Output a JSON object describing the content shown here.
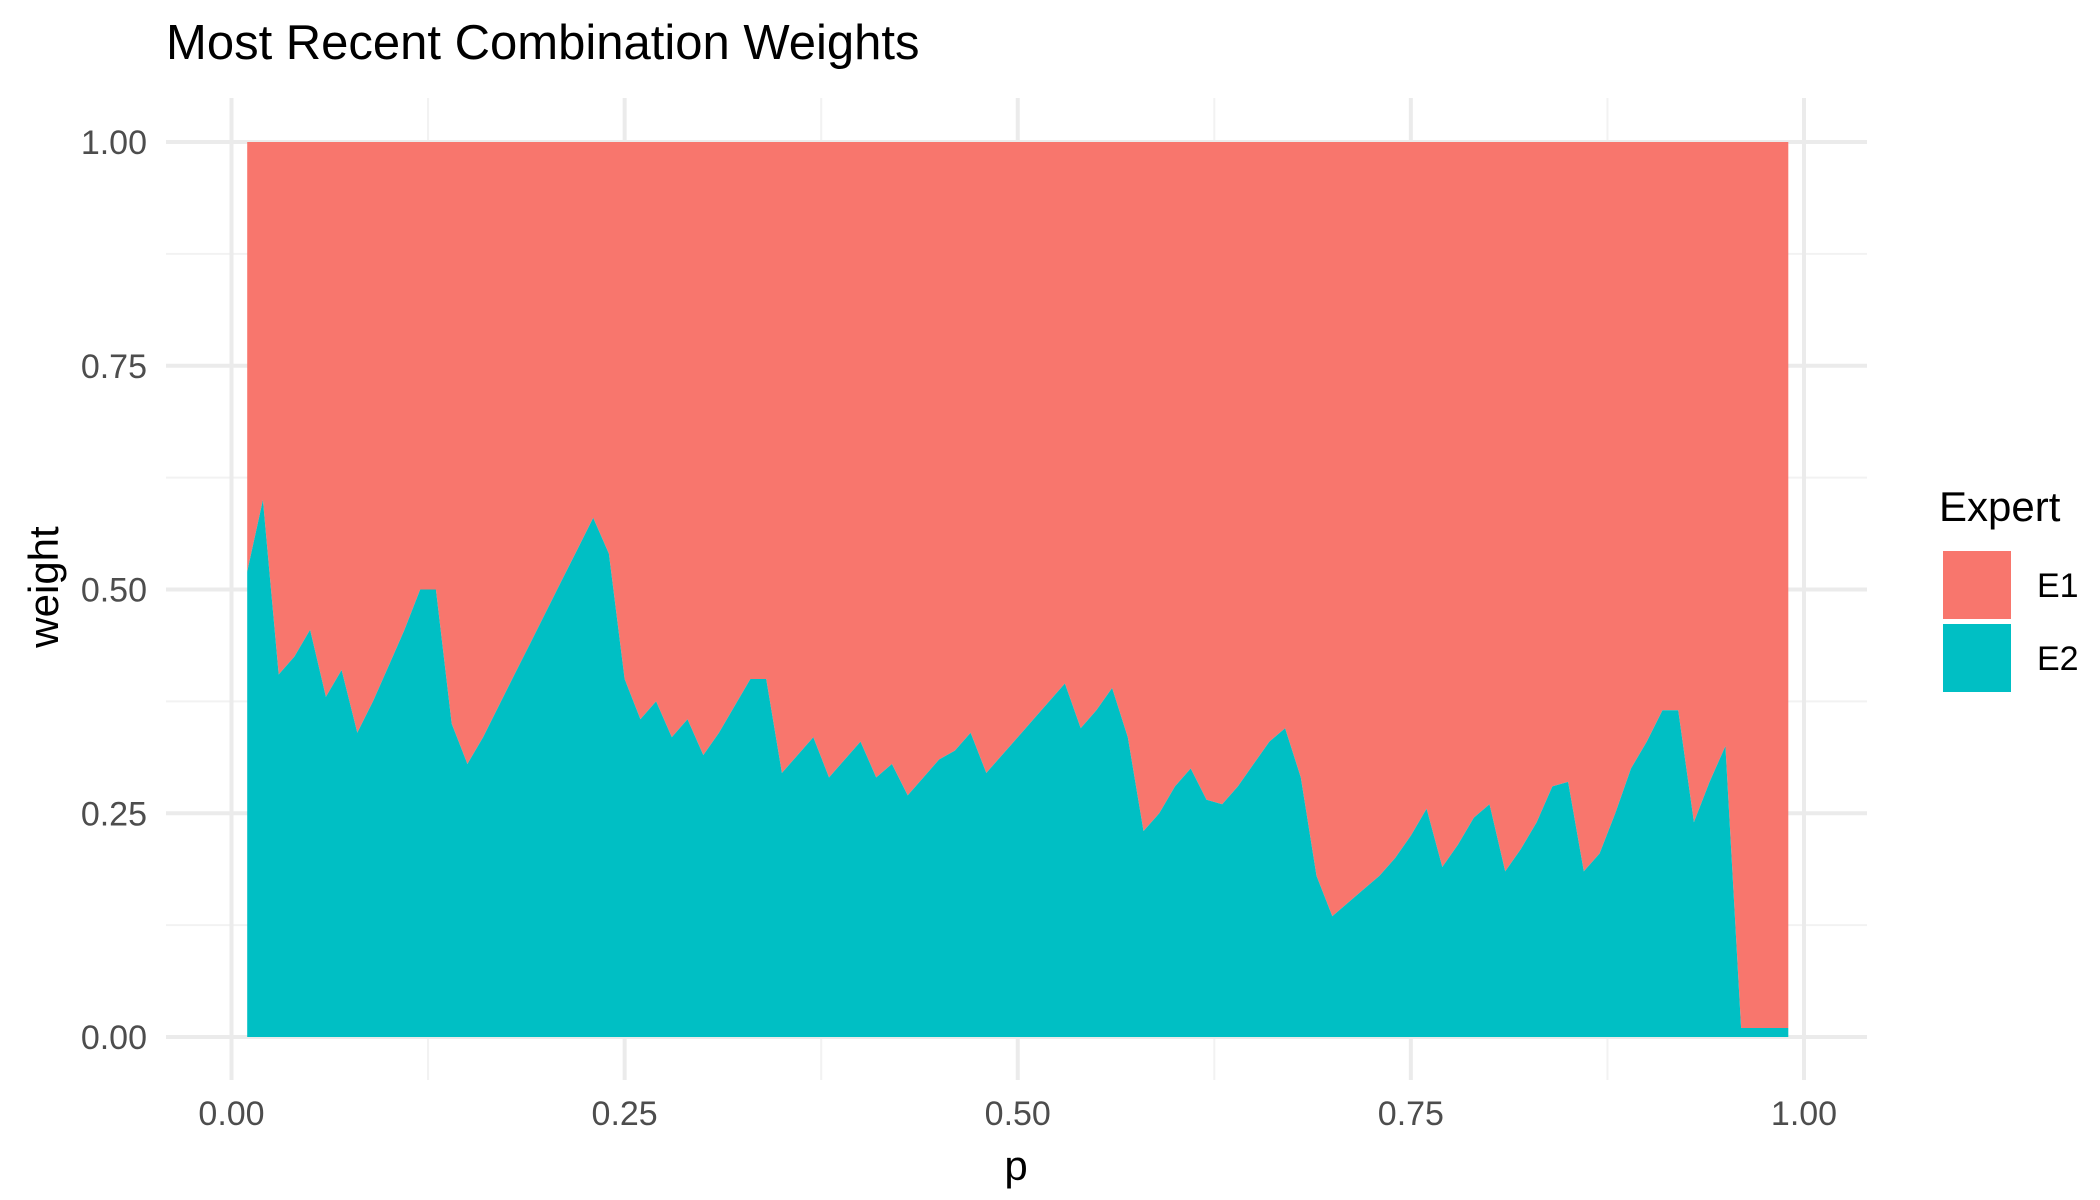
{
  "chart_data": {
    "type": "area",
    "stacked": true,
    "title": "Most Recent Combination Weights",
    "xlabel": "p",
    "ylabel": "weight",
    "xlim": [
      0,
      1
    ],
    "ylim": [
      0,
      1
    ],
    "x_ticks": [
      {
        "value": 0,
        "label": "0.00"
      },
      {
        "value": 0.25,
        "label": "0.25"
      },
      {
        "value": 0.5,
        "label": "0.50"
      },
      {
        "value": 0.75,
        "label": "0.75"
      },
      {
        "value": 1,
        "label": "1.00"
      }
    ],
    "y_ticks": [
      {
        "value": 0,
        "label": "0.00"
      },
      {
        "value": 0.25,
        "label": "0.25"
      },
      {
        "value": 0.5,
        "label": "0.50"
      },
      {
        "value": 0.75,
        "label": "0.75"
      },
      {
        "value": 1,
        "label": "1.00"
      }
    ],
    "grid": true,
    "legend": {
      "title": "Expert",
      "placement": "right"
    },
    "x": [
      0.01,
      0.02,
      0.03,
      0.04,
      0.05,
      0.06,
      0.07,
      0.08,
      0.09,
      0.1,
      0.11,
      0.12,
      0.13,
      0.14,
      0.15,
      0.16,
      0.17,
      0.18,
      0.19,
      0.2,
      0.21,
      0.22,
      0.23,
      0.24,
      0.25,
      0.26,
      0.27,
      0.28,
      0.29,
      0.3,
      0.31,
      0.32,
      0.33,
      0.34,
      0.35,
      0.36,
      0.37,
      0.38,
      0.39,
      0.4,
      0.41,
      0.42,
      0.43,
      0.44,
      0.45,
      0.46,
      0.47,
      0.48,
      0.49,
      0.5,
      0.51,
      0.52,
      0.53,
      0.54,
      0.55,
      0.56,
      0.57,
      0.58,
      0.59,
      0.6,
      0.61,
      0.62,
      0.63,
      0.64,
      0.65,
      0.66,
      0.67,
      0.68,
      0.69,
      0.7,
      0.71,
      0.72,
      0.73,
      0.74,
      0.75,
      0.76,
      0.77,
      0.78,
      0.79,
      0.8,
      0.81,
      0.82,
      0.83,
      0.84,
      0.85,
      0.86,
      0.87,
      0.88,
      0.89,
      0.9,
      0.91,
      0.92,
      0.93,
      0.94,
      0.95,
      0.96,
      0.97,
      0.98,
      0.99
    ],
    "series": [
      {
        "name": "E1",
        "color": "#F8766D",
        "values": [
          0.48,
          0.4,
          0.595,
          0.575,
          0.545,
          0.62,
          0.59,
          0.66,
          0.625,
          0.585,
          0.545,
          0.5,
          0.5,
          0.65,
          0.695,
          0.665,
          0.63,
          0.595,
          0.56,
          0.525,
          0.49,
          0.455,
          0.42,
          0.46,
          0.6,
          0.645,
          0.625,
          0.665,
          0.645,
          0.685,
          0.66,
          0.63,
          0.6,
          0.6,
          0.705,
          0.685,
          0.665,
          0.71,
          0.69,
          0.67,
          0.71,
          0.695,
          0.73,
          0.71,
          0.69,
          0.68,
          0.66,
          0.705,
          0.685,
          0.665,
          0.645,
          0.625,
          0.605,
          0.655,
          0.635,
          0.61,
          0.665,
          0.77,
          0.75,
          0.72,
          0.7,
          0.735,
          0.74,
          0.72,
          0.695,
          0.67,
          0.655,
          0.71,
          0.82,
          0.865,
          0.85,
          0.835,
          0.82,
          0.8,
          0.775,
          0.745,
          0.81,
          0.785,
          0.755,
          0.74,
          0.815,
          0.79,
          0.76,
          0.72,
          0.715,
          0.815,
          0.795,
          0.75,
          0.7,
          0.67,
          0.635,
          0.635,
          0.76,
          0.715,
          0.675,
          0.99,
          0.99,
          0.99,
          0.99
        ]
      },
      {
        "name": "E2",
        "color": "#00BFC4",
        "values": [
          0.52,
          0.6,
          0.405,
          0.425,
          0.455,
          0.38,
          0.41,
          0.34,
          0.375,
          0.415,
          0.455,
          0.5,
          0.5,
          0.35,
          0.305,
          0.335,
          0.37,
          0.405,
          0.44,
          0.475,
          0.51,
          0.545,
          0.58,
          0.54,
          0.4,
          0.355,
          0.375,
          0.335,
          0.355,
          0.315,
          0.34,
          0.37,
          0.4,
          0.4,
          0.295,
          0.315,
          0.335,
          0.29,
          0.31,
          0.33,
          0.29,
          0.305,
          0.27,
          0.29,
          0.31,
          0.32,
          0.34,
          0.295,
          0.315,
          0.335,
          0.355,
          0.375,
          0.395,
          0.345,
          0.365,
          0.39,
          0.335,
          0.23,
          0.25,
          0.28,
          0.3,
          0.265,
          0.26,
          0.28,
          0.305,
          0.33,
          0.345,
          0.29,
          0.18,
          0.135,
          0.15,
          0.165,
          0.18,
          0.2,
          0.225,
          0.255,
          0.19,
          0.215,
          0.245,
          0.26,
          0.185,
          0.21,
          0.24,
          0.28,
          0.285,
          0.185,
          0.205,
          0.25,
          0.3,
          0.33,
          0.365,
          0.365,
          0.24,
          0.285,
          0.325,
          0.01,
          0.01,
          0.01,
          0.01
        ]
      }
    ]
  }
}
